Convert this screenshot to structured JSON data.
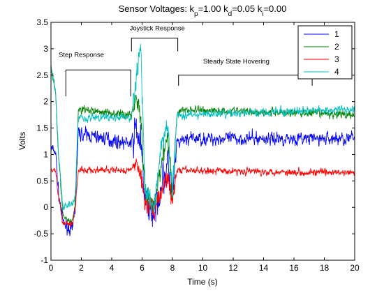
{
  "chart_data": {
    "type": "line",
    "title": {
      "main": "Sensor Voltages: k",
      "kp_sub": "p",
      "kp_val": "=1.00 k",
      "kd_sub": "d",
      "kd_val": "=0.05 k",
      "ki_sub": "i",
      "ki_val": "=0.00"
    },
    "xlabel": "Time (s)",
    "ylabel": "Volts",
    "xlim": [
      0,
      20
    ],
    "ylim": [
      -1,
      3.5
    ],
    "xticks": [
      0,
      2,
      4,
      6,
      8,
      10,
      12,
      14,
      16,
      18,
      20
    ],
    "yticks": [
      -1,
      -0.5,
      0,
      0.5,
      1,
      1.5,
      2,
      2.5,
      3,
      3.5
    ],
    "grid": false,
    "legend_position": "top-right",
    "series": [
      {
        "name": "1",
        "color": "#0000ff",
        "approx_values": [
          [
            0,
            1.1
          ],
          [
            0.3,
            1.05
          ],
          [
            0.5,
            0.25
          ],
          [
            0.8,
            -0.3
          ],
          [
            1.4,
            -0.45
          ],
          [
            1.6,
            0.05
          ],
          [
            1.8,
            1.4
          ],
          [
            5.3,
            1.2
          ],
          [
            5.6,
            1.5
          ],
          [
            5.9,
            1.2
          ],
          [
            6.2,
            0.1
          ],
          [
            6.8,
            -0.1
          ],
          [
            7.3,
            0.5
          ],
          [
            7.7,
            0.8
          ],
          [
            8.0,
            0.1
          ],
          [
            8.3,
            1.2
          ],
          [
            9.0,
            1.3
          ],
          [
            20,
            1.3
          ]
        ]
      },
      {
        "name": "2",
        "color": "#008000",
        "approx_values": [
          [
            0,
            2.7
          ],
          [
            0.3,
            2.2
          ],
          [
            0.5,
            1.0
          ],
          [
            0.8,
            -0.2
          ],
          [
            1.4,
            -0.3
          ],
          [
            1.6,
            0.1
          ],
          [
            1.8,
            1.85
          ],
          [
            5.3,
            1.75
          ],
          [
            5.6,
            2.1
          ],
          [
            5.9,
            1.7
          ],
          [
            6.2,
            0.2
          ],
          [
            6.8,
            -0.05
          ],
          [
            7.3,
            0.9
          ],
          [
            7.7,
            1.4
          ],
          [
            8.0,
            0.2
          ],
          [
            8.3,
            1.8
          ],
          [
            9.0,
            1.85
          ],
          [
            20,
            1.75
          ]
        ]
      },
      {
        "name": "3",
        "color": "#ff0000",
        "approx_values": [
          [
            0,
            0.75
          ],
          [
            0.3,
            0.7
          ],
          [
            0.5,
            0.2
          ],
          [
            0.8,
            -0.3
          ],
          [
            1.4,
            -0.3
          ],
          [
            1.6,
            0.0
          ],
          [
            1.8,
            0.7
          ],
          [
            5.3,
            0.7
          ],
          [
            5.6,
            0.9
          ],
          [
            5.9,
            0.6
          ],
          [
            6.2,
            0.1
          ],
          [
            6.8,
            -0.05
          ],
          [
            7.3,
            0.3
          ],
          [
            7.7,
            0.6
          ],
          [
            8.0,
            0.05
          ],
          [
            8.3,
            0.7
          ],
          [
            9.0,
            0.7
          ],
          [
            20,
            0.65
          ]
        ]
      },
      {
        "name": "4",
        "color": "#00bfbf",
        "approx_values": [
          [
            0,
            2.6
          ],
          [
            0.3,
            2.2
          ],
          [
            0.5,
            1.0
          ],
          [
            0.8,
            0.0
          ],
          [
            1.4,
            0.1
          ],
          [
            1.6,
            0.2
          ],
          [
            1.8,
            1.7
          ],
          [
            5.3,
            1.7
          ],
          [
            5.6,
            2.4
          ],
          [
            5.9,
            3.1
          ],
          [
            6.2,
            0.3
          ],
          [
            6.8,
            0.05
          ],
          [
            7.3,
            1.2
          ],
          [
            7.7,
            1.5
          ],
          [
            8.0,
            0.3
          ],
          [
            8.3,
            1.75
          ],
          [
            9.0,
            1.75
          ],
          [
            20,
            1.85
          ]
        ]
      }
    ],
    "annotations": [
      {
        "text": "Step Response",
        "x": 2.0,
        "y": 2.85
      },
      {
        "text": "Joystick Response",
        "x": 7.0,
        "y": 3.35
      },
      {
        "text": "Steady State Hovering",
        "x": 12.2,
        "y": 2.72
      }
    ],
    "brackets": [
      {
        "x1": 0.98,
        "x2": 5.25,
        "ytop": 2.6,
        "ybottom": 2.1
      },
      {
        "x1": 5.3,
        "x2": 8.35,
        "ytop": 3.2,
        "ybottom": 2.95
      },
      {
        "x1": 8.4,
        "x2": 17.2,
        "ytop": 2.5,
        "ybottom": 2.3
      }
    ]
  }
}
